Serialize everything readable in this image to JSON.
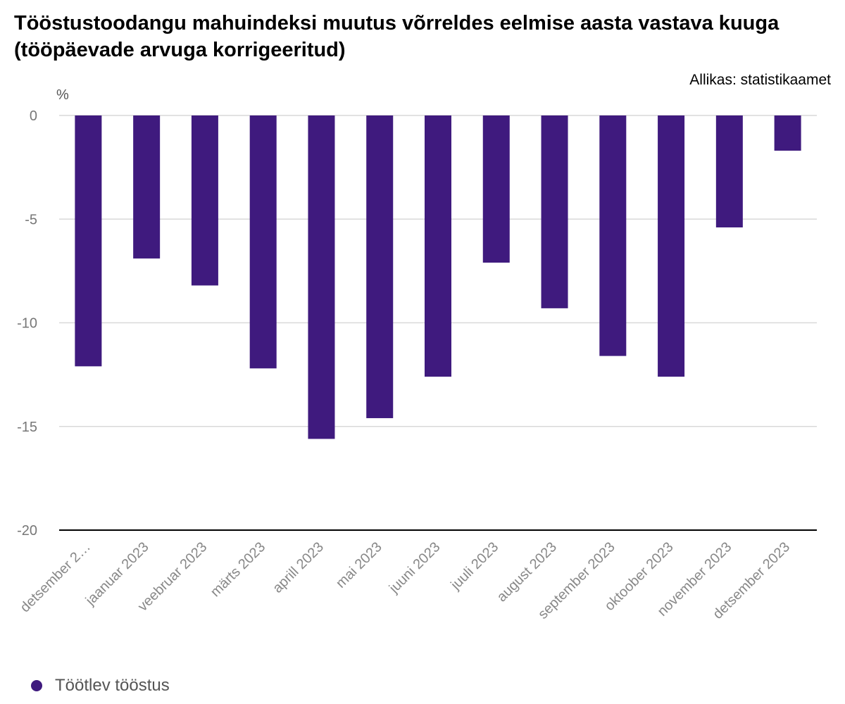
{
  "title": "Tööstustoodangu mahuindeksi muutus võrreldes eelmise aasta vastava kuuga (tööpäevade arvuga korrigeeritud)",
  "source": "Allikas: statistikaamet",
  "unit": "%",
  "chart_data": {
    "type": "bar",
    "title": "Tööstustoodangu mahuindeksi muutus võrreldes eelmise aasta vastava kuuga (tööpäevade arvuga korrigeeritud)",
    "ylabel": "%",
    "xlabel": "",
    "ylim": [
      -20,
      0
    ],
    "yticks": [
      0,
      -5,
      -10,
      -15,
      -20
    ],
    "grid": true,
    "legend_position": "bottom-left",
    "categories": [
      "detsember 2…",
      "jaanuar 2023",
      "veebruar 2023",
      "märts 2023",
      "aprill 2023",
      "mai 2023",
      "juuni 2023",
      "juuli 2023",
      "august 2023",
      "september 2023",
      "oktoober 2023",
      "november 2023",
      "detsember 2023"
    ],
    "series": [
      {
        "name": "Töötlev tööstus",
        "color": "#3f1a7e",
        "values": [
          -12.1,
          -6.9,
          -8.2,
          -12.2,
          -15.6,
          -14.6,
          -12.6,
          -7.1,
          -9.3,
          -11.6,
          -12.6,
          -5.4,
          -1.7
        ]
      }
    ]
  }
}
